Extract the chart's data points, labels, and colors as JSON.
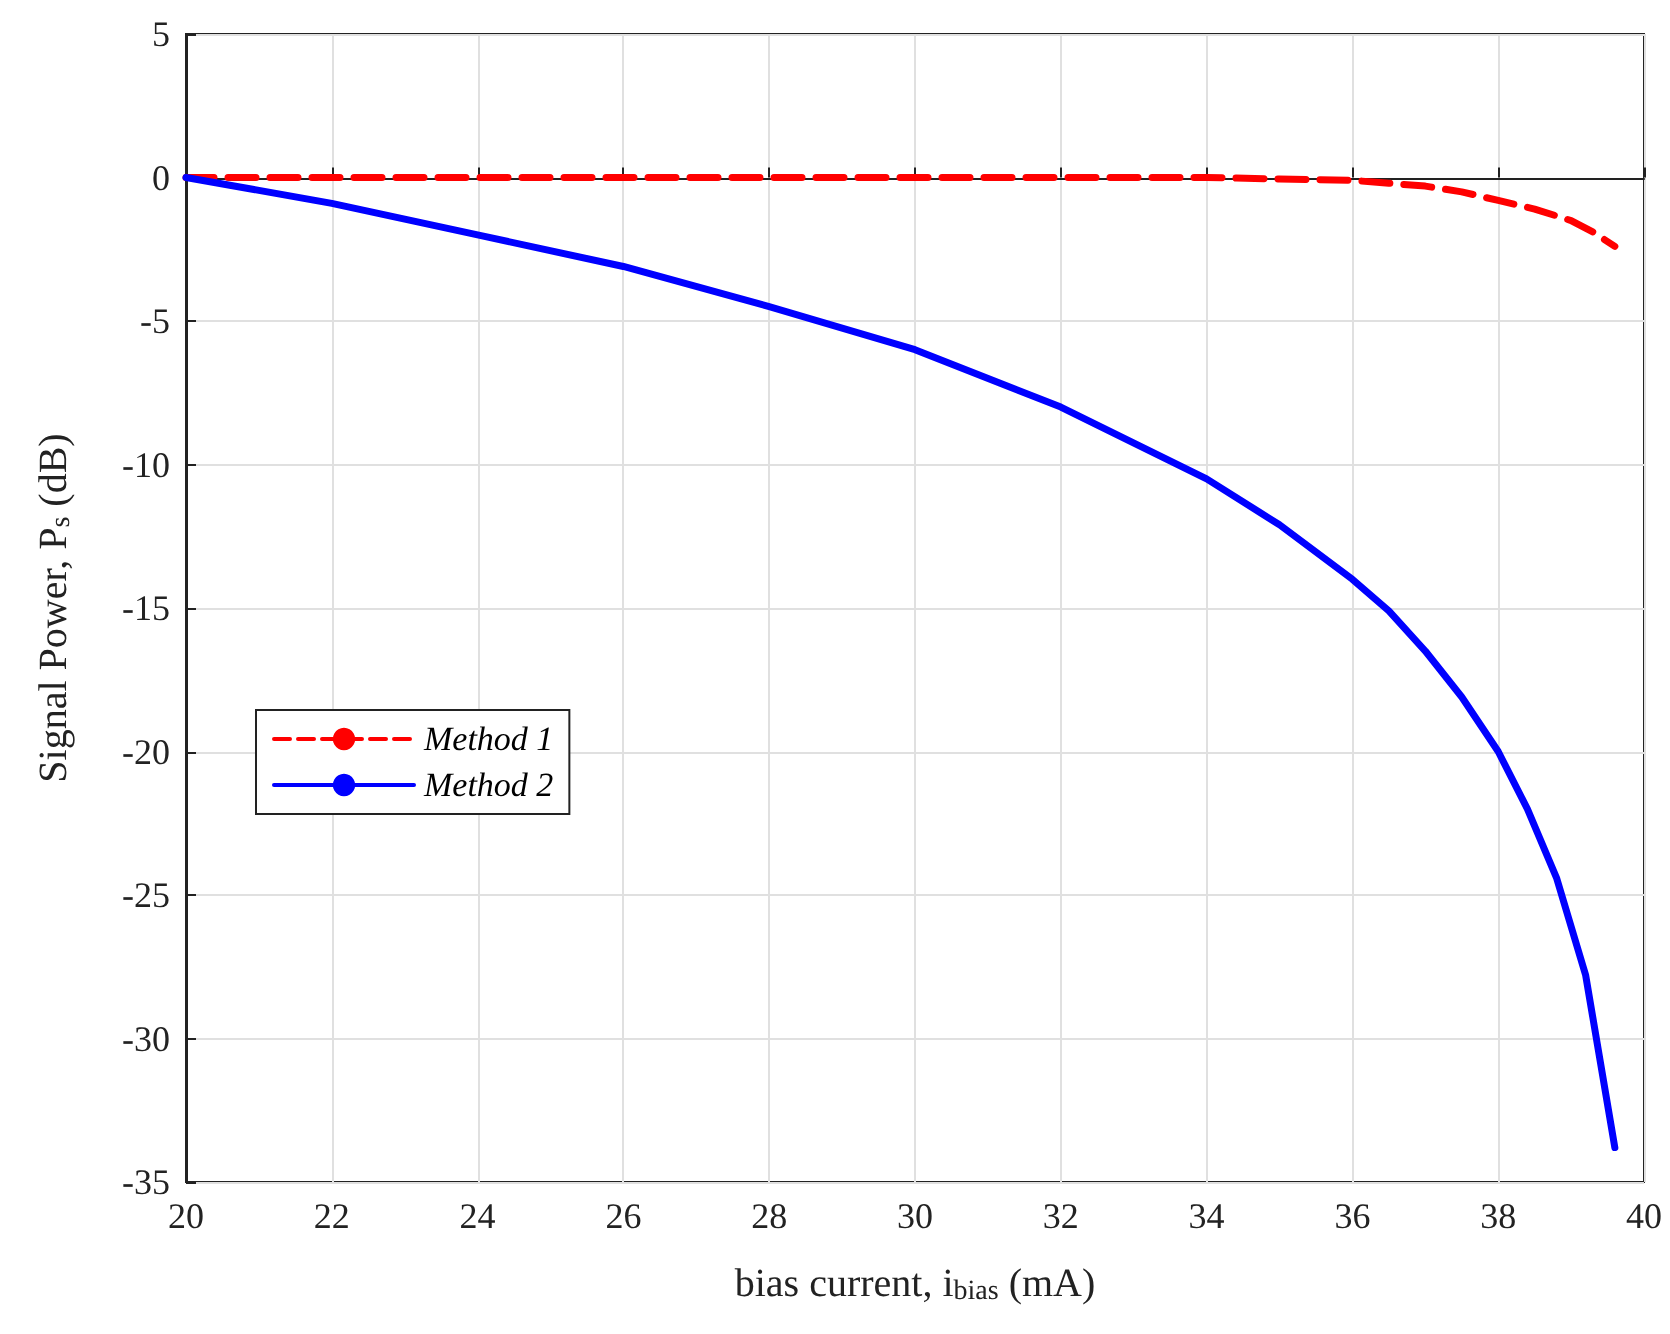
{
  "chart_data": {
    "type": "line",
    "xlabel": "bias current, i$_{bias}$ (mA)",
    "ylabel": "Signal Power, P$_{s}$ (dB)",
    "xlim": [
      20,
      40
    ],
    "xticks": [
      20,
      22,
      24,
      26,
      28,
      30,
      32,
      34,
      36,
      38,
      40
    ],
    "ylim": [
      -35,
      5
    ],
    "yticks": [
      -35,
      -30,
      -25,
      -20,
      -15,
      -10,
      -5,
      0,
      5
    ],
    "grid": true,
    "legend": "left",
    "marker": "none",
    "series": [
      {
        "name": "Method 1",
        "color": "#ff0000",
        "line_style": "dashed",
        "x": [
          20,
          22,
          24,
          26,
          28,
          30,
          32,
          34,
          35,
          36,
          36.5,
          37,
          37.5,
          38,
          38.5,
          39,
          39.3,
          39.6
        ],
        "values": [
          0,
          0,
          0,
          0,
          0,
          0,
          0,
          0,
          -0.05,
          -0.1,
          -0.2,
          -0.3,
          -0.5,
          -0.8,
          -1.1,
          -1.5,
          -1.9,
          -2.4
        ]
      },
      {
        "name": "Method 2",
        "color": "#0000ff",
        "line_style": "solid",
        "x": [
          20,
          22,
          24,
          26,
          28,
          30,
          32,
          34,
          35,
          36,
          36.5,
          37,
          37.5,
          38,
          38.4,
          38.8,
          39.2,
          39.6
        ],
        "values": [
          0,
          -0.9,
          -2,
          -3.1,
          -4.5,
          -6,
          -8,
          -10.5,
          -12.1,
          -14,
          -15.1,
          -16.5,
          -18.1,
          -20,
          -22,
          -24.4,
          -27.8,
          -33.8
        ]
      }
    ]
  }
}
